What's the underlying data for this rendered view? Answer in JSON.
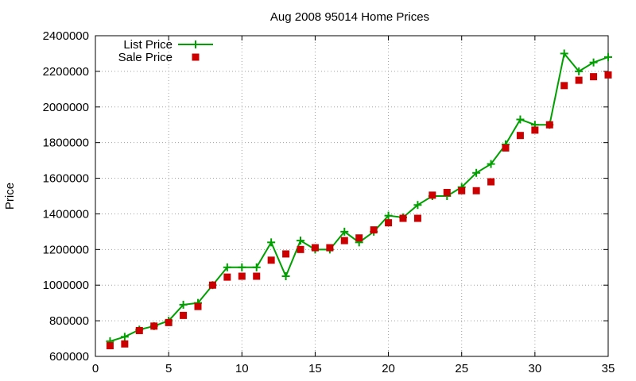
{
  "chart_data": {
    "type": "line",
    "title": "Aug 2008 95014 Home Prices",
    "xlabel": "",
    "ylabel": "Price",
    "xlim": [
      0,
      35
    ],
    "ylim": [
      600000,
      2400000
    ],
    "x_ticks": [
      "0",
      "5",
      "10",
      "15",
      "20",
      "25",
      "30",
      "35"
    ],
    "y_ticks": [
      "600000",
      "800000",
      "1000000",
      "1200000",
      "1400000",
      "1600000",
      "1800000",
      "2000000",
      "2200000",
      "2400000"
    ],
    "x_tick_values": [
      0,
      5,
      10,
      15,
      20,
      25,
      30,
      35
    ],
    "y_tick_values": [
      600000,
      800000,
      1000000,
      1200000,
      1400000,
      1600000,
      1800000,
      2000000,
      2200000,
      2400000
    ],
    "grid": true,
    "legend_placement": "top-left",
    "series": [
      {
        "name": "List Price",
        "style": "line+cross",
        "color": "#00a000",
        "x": [
          1,
          2,
          3,
          4,
          5,
          6,
          7,
          8,
          9,
          10,
          11,
          12,
          13,
          14,
          15,
          16,
          17,
          18,
          19,
          20,
          21,
          22,
          23,
          24,
          25,
          26,
          27,
          28,
          29,
          30,
          31,
          32,
          33,
          34,
          35
        ],
        "values": [
          685000,
          710000,
          750000,
          770000,
          800000,
          890000,
          900000,
          1000000,
          1100000,
          1100000,
          1100000,
          1240000,
          1050000,
          1250000,
          1200000,
          1200000,
          1300000,
          1240000,
          1300000,
          1390000,
          1380000,
          1450000,
          1500000,
          1500000,
          1550000,
          1630000,
          1680000,
          1790000,
          1930000,
          1900000,
          1900000,
          2300000,
          2200000,
          2250000,
          2280000
        ]
      },
      {
        "name": "Sale Price",
        "style": "square",
        "color": "#cc0000",
        "x": [
          1,
          2,
          3,
          4,
          5,
          6,
          7,
          8,
          9,
          10,
          11,
          12,
          13,
          14,
          15,
          16,
          17,
          18,
          19,
          20,
          21,
          22,
          23,
          24,
          25,
          26,
          27,
          28,
          29,
          30,
          31,
          32,
          33,
          34,
          35
        ],
        "values": [
          660000,
          670000,
          745000,
          770000,
          790000,
          830000,
          880000,
          1000000,
          1045000,
          1050000,
          1050000,
          1140000,
          1175000,
          1200000,
          1210000,
          1210000,
          1250000,
          1265000,
          1310000,
          1350000,
          1375000,
          1375000,
          1505000,
          1520000,
          1530000,
          1530000,
          1580000,
          1770000,
          1840000,
          1870000,
          1900000,
          2120000,
          2150000,
          2170000,
          2180000
        ]
      }
    ]
  }
}
